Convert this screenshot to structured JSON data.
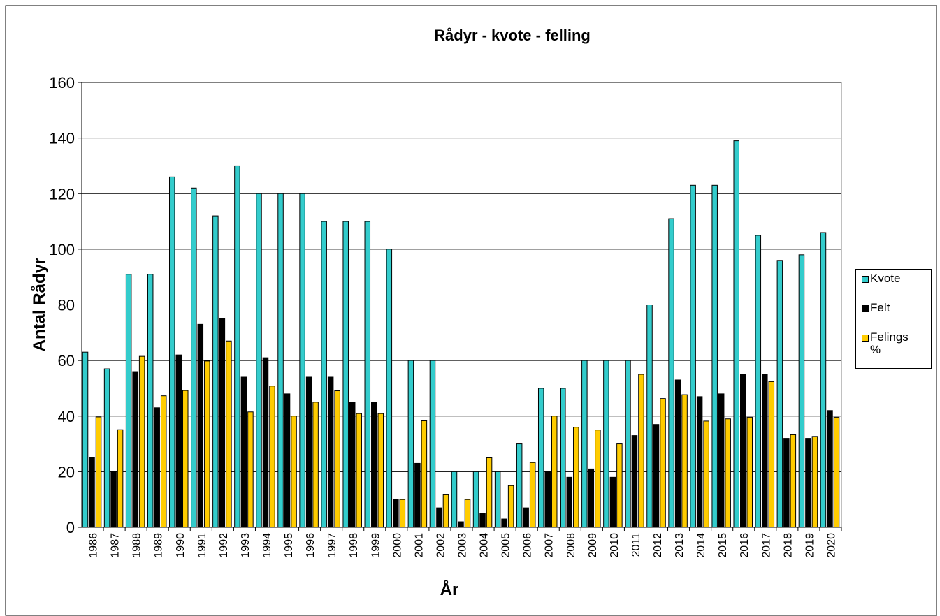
{
  "chart_data": {
    "type": "bar",
    "title": "Rådyr - kvote - felling",
    "x_label": "År",
    "y_label": "Antal Rådyr",
    "categories": [
      "1986",
      "1987",
      "1988",
      "1989",
      "1990",
      "1991",
      "1992",
      "1993",
      "1994",
      "1995",
      "1996",
      "1997",
      "1998",
      "1999",
      "2000",
      "2001",
      "2002",
      "2003",
      "2004",
      "2005",
      "2006",
      "2007",
      "2008",
      "2009",
      "2010",
      "2011",
      "2012",
      "2013",
      "2014",
      "2015",
      "2016",
      "2017",
      "2018",
      "2019",
      "2020"
    ],
    "series": [
      {
        "name": "Kvote",
        "color": "#33cccc",
        "values": [
          63,
          57,
          91,
          91,
          126,
          122,
          112,
          130,
          120,
          120,
          120,
          110,
          110,
          110,
          100,
          60,
          60,
          20,
          20,
          20,
          30,
          50,
          50,
          60,
          60,
          60,
          80,
          111,
          123,
          123,
          139,
          105,
          96,
          98,
          106
        ]
      },
      {
        "name": "Felt",
        "color": "#000000",
        "values": [
          25,
          20,
          56,
          43,
          62,
          73,
          75,
          54,
          61,
          48,
          54,
          54,
          45,
          45,
          10,
          23,
          7,
          2,
          5,
          3,
          7,
          20,
          18,
          21,
          18,
          33,
          37,
          53,
          47,
          48,
          55,
          55,
          32,
          32,
          42
        ]
      },
      {
        "name": "Felings %",
        "color": "#ffcc00",
        "values": [
          39.7,
          35.1,
          61.5,
          47.3,
          49.2,
          59.8,
          67,
          41.5,
          50.8,
          40,
          45,
          49.1,
          40.9,
          40.9,
          10,
          38.3,
          11.7,
          10,
          25,
          15,
          23.3,
          40,
          36,
          35,
          30,
          55,
          46.3,
          47.7,
          38.2,
          39,
          39.6,
          52.4,
          33.3,
          32.7,
          39.6
        ]
      }
    ],
    "ylim": [
      0,
      160
    ],
    "yticks": [
      0,
      20,
      40,
      60,
      80,
      100,
      120,
      140,
      160
    ],
    "grid": true,
    "legend": "right"
  }
}
